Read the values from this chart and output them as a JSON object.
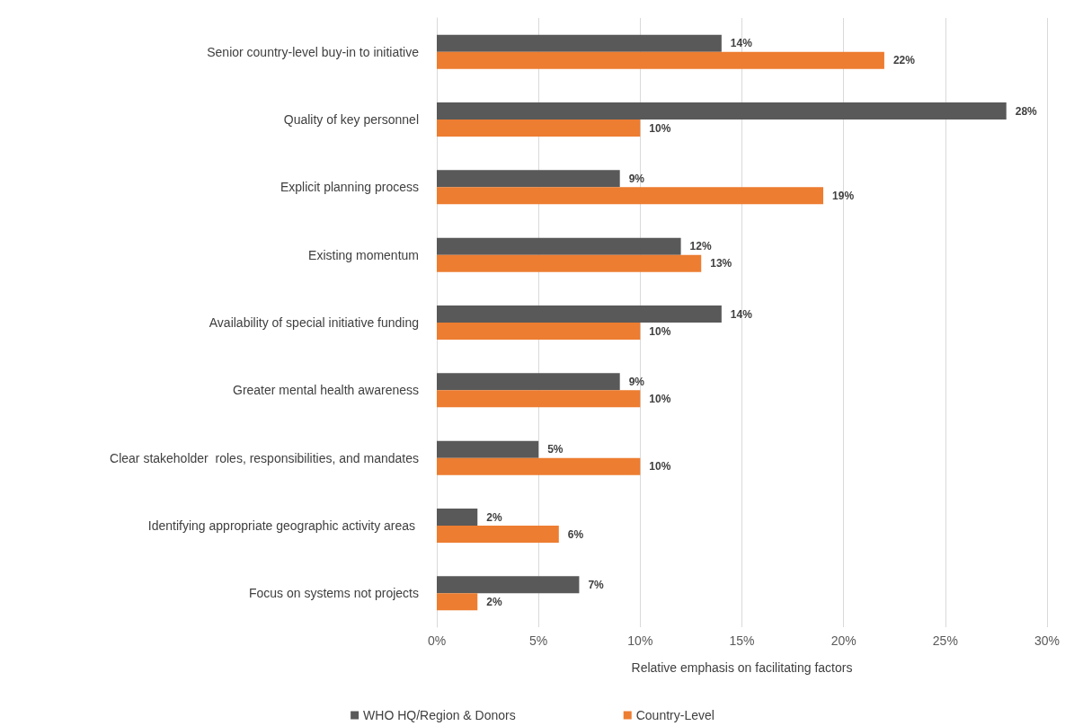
{
  "chart_data": {
    "type": "bar",
    "orientation": "horizontal",
    "xlabel": "Relative emphasis on facilitating factors",
    "categories": [
      "Senior country-level buy-in to initiative",
      "Quality of key personnel",
      "Explicit planning process",
      "Existing momentum",
      "Availability of special initiative funding",
      "Greater mental health awareness",
      "Clear stakeholder  roles, responsibilities, and mandates",
      "Identifying appropriate geographic activity areas ",
      "Focus on systems not projects"
    ],
    "series": [
      {
        "name": "WHO HQ/Region & Donors",
        "color": "#595959",
        "values": [
          14,
          28,
          9,
          12,
          14,
          9,
          5,
          2,
          7
        ],
        "value_labels": [
          "14%",
          "28%",
          "9%",
          "12%",
          "14%",
          "9%",
          "5%",
          "2%",
          "7%"
        ]
      },
      {
        "name": "Country-Level",
        "color": "#ed7d31",
        "values": [
          22,
          10,
          19,
          13,
          10,
          10,
          10,
          6,
          2
        ],
        "value_labels": [
          "22%",
          "10%",
          "19%",
          "13%",
          "10%",
          "10%",
          "10%",
          "6%",
          "2%"
        ]
      }
    ],
    "xlim": [
      0,
      30
    ],
    "xticks": [
      {
        "value": 0,
        "label": "0%"
      },
      {
        "value": 5,
        "label": "5%"
      },
      {
        "value": 10,
        "label": "10%"
      },
      {
        "value": 15,
        "label": "15%"
      },
      {
        "value": 20,
        "label": "20%"
      },
      {
        "value": 25,
        "label": "25%"
      },
      {
        "value": 30,
        "label": "30%"
      }
    ],
    "grid": "x",
    "legend": "bottom"
  }
}
